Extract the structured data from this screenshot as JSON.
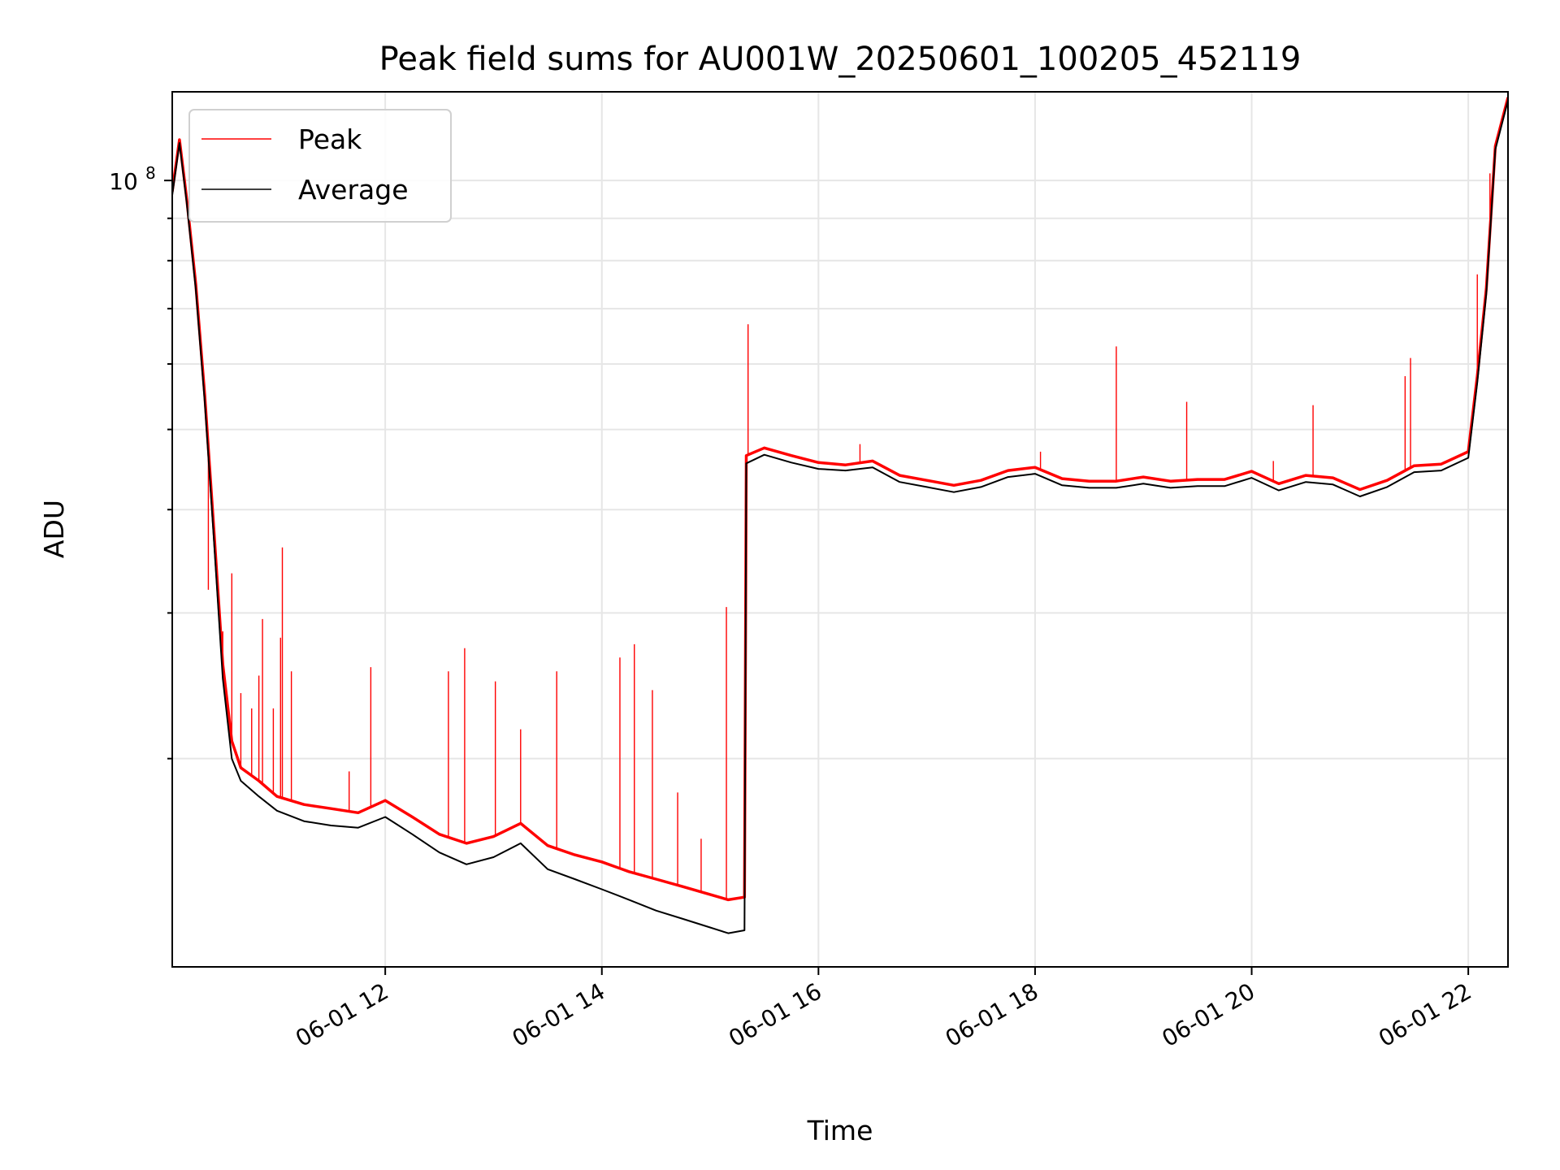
{
  "chart_data": {
    "type": "line",
    "title": "Peak field sums for AU001W_20250601_100205_452119",
    "xlabel": "Time",
    "ylabel": "ADU",
    "y_scale": "log",
    "grid": true,
    "legend_placement": "top-left",
    "ylim": [
      11200000,
      128000000
    ],
    "xlim": [
      "06-01 10:02",
      "06-01 22:22"
    ],
    "x_ticks": [
      "06-01 12",
      "06-01 14",
      "06-01 16",
      "06-01 18",
      "06-01 20",
      "06-01 22"
    ],
    "y_tick_labels": [
      "10",
      "8"
    ],
    "colors": {
      "Peak": "#ff0000",
      "Average": "#000000"
    },
    "series": [
      {
        "name": "Peak",
        "x": [
          "06-01 10:02",
          "06-01 10:06",
          "06-01 10:10",
          "06-01 10:15",
          "06-01 10:20",
          "06-01 10:25",
          "06-01 10:30",
          "06-01 10:35",
          "06-01 10:40",
          "06-01 10:50",
          "06-01 11:00",
          "06-01 11:15",
          "06-01 11:30",
          "06-01 11:45",
          "06-01 12:00",
          "06-01 12:15",
          "06-01 12:30",
          "06-01 12:45",
          "06-01 13:00",
          "06-01 13:15",
          "06-01 13:30",
          "06-01 13:45",
          "06-01 14:00",
          "06-01 14:15",
          "06-01 14:30",
          "06-01 14:45",
          "06-01 15:00",
          "06-01 15:10",
          "06-01 15:19",
          "06-01 15:20",
          "06-01 15:30",
          "06-01 15:45",
          "06-01 16:00",
          "06-01 16:15",
          "06-01 16:30",
          "06-01 16:45",
          "06-01 17:00",
          "06-01 17:15",
          "06-01 17:30",
          "06-01 17:45",
          "06-01 18:00",
          "06-01 18:15",
          "06-01 18:30",
          "06-01 18:45",
          "06-01 19:00",
          "06-01 19:15",
          "06-01 19:30",
          "06-01 19:45",
          "06-01 20:00",
          "06-01 20:15",
          "06-01 20:30",
          "06-01 20:45",
          "06-01 21:00",
          "06-01 21:15",
          "06-01 21:30",
          "06-01 21:45",
          "06-01 22:00",
          "06-01 22:05",
          "06-01 22:10",
          "06-01 22:15",
          "06-01 22:22"
        ],
        "values": [
          97000000,
          112000000,
          95000000,
          75000000,
          55000000,
          38000000,
          26000000,
          21000000,
          19500000,
          18800000,
          18000000,
          17600000,
          17400000,
          17200000,
          17800000,
          17000000,
          16200000,
          15800000,
          16100000,
          16700000,
          15700000,
          15300000,
          15000000,
          14600000,
          14300000,
          14000000,
          13700000,
          13500000,
          13600000,
          46500000,
          47500000,
          46500000,
          45600000,
          45300000,
          45800000,
          44000000,
          43400000,
          42800000,
          43400000,
          44600000,
          45000000,
          43600000,
          43300000,
          43300000,
          43800000,
          43300000,
          43500000,
          43500000,
          44500000,
          43000000,
          44000000,
          43700000,
          42300000,
          43400000,
          45200000,
          45400000,
          47000000,
          58000000,
          74000000,
          110000000,
          126000000
        ]
      },
      {
        "name": "Average",
        "x": [
          "06-01 10:02",
          "06-01 10:06",
          "06-01 10:10",
          "06-01 10:15",
          "06-01 10:20",
          "06-01 10:25",
          "06-01 10:30",
          "06-01 10:35",
          "06-01 10:40",
          "06-01 10:50",
          "06-01 11:00",
          "06-01 11:15",
          "06-01 11:30",
          "06-01 11:45",
          "06-01 12:00",
          "06-01 12:15",
          "06-01 12:30",
          "06-01 12:45",
          "06-01 13:00",
          "06-01 13:15",
          "06-01 13:30",
          "06-01 13:45",
          "06-01 14:00",
          "06-01 14:15",
          "06-01 14:30",
          "06-01 14:45",
          "06-01 15:00",
          "06-01 15:10",
          "06-01 15:19",
          "06-01 15:20",
          "06-01 15:30",
          "06-01 15:45",
          "06-01 16:00",
          "06-01 16:15",
          "06-01 16:30",
          "06-01 16:45",
          "06-01 17:00",
          "06-01 17:15",
          "06-01 17:30",
          "06-01 17:45",
          "06-01 18:00",
          "06-01 18:15",
          "06-01 18:30",
          "06-01 18:45",
          "06-01 19:00",
          "06-01 19:15",
          "06-01 19:30",
          "06-01 19:45",
          "06-01 20:00",
          "06-01 20:15",
          "06-01 20:30",
          "06-01 20:45",
          "06-01 21:00",
          "06-01 21:15",
          "06-01 21:30",
          "06-01 21:45",
          "06-01 22:00",
          "06-01 22:05",
          "06-01 22:10",
          "06-01 22:15",
          "06-01 22:22"
        ],
        "values": [
          96000000,
          111000000,
          94000000,
          74000000,
          54000000,
          37000000,
          25000000,
          20000000,
          18800000,
          18000000,
          17300000,
          16800000,
          16600000,
          16500000,
          17000000,
          16200000,
          15400000,
          14900000,
          15200000,
          15800000,
          14700000,
          14300000,
          13900000,
          13500000,
          13100000,
          12800000,
          12500000,
          12300000,
          12400000,
          45500000,
          46600000,
          45600000,
          44800000,
          44600000,
          45000000,
          43200000,
          42600000,
          42000000,
          42600000,
          43800000,
          44200000,
          42800000,
          42500000,
          42500000,
          43000000,
          42500000,
          42700000,
          42700000,
          43700000,
          42200000,
          43200000,
          42900000,
          41500000,
          42600000,
          44400000,
          44600000,
          46200000,
          57000000,
          73000000,
          109000000,
          125000000
        ]
      }
    ],
    "peak_spikes": [
      {
        "x": "06-01 10:22",
        "value": 32000000
      },
      {
        "x": "06-01 10:30",
        "value": 28500000
      },
      {
        "x": "06-01 10:35",
        "value": 33500000
      },
      {
        "x": "06-01 10:40",
        "value": 24000000
      },
      {
        "x": "06-01 10:46",
        "value": 23000000
      },
      {
        "x": "06-01 10:50",
        "value": 25200000
      },
      {
        "x": "06-01 10:52",
        "value": 29500000
      },
      {
        "x": "06-01 10:58",
        "value": 23000000
      },
      {
        "x": "06-01 11:02",
        "value": 28000000
      },
      {
        "x": "06-01 11:03",
        "value": 36000000
      },
      {
        "x": "06-01 11:08",
        "value": 25500000
      },
      {
        "x": "06-01 11:40",
        "value": 19300000
      },
      {
        "x": "06-01 11:52",
        "value": 25800000
      },
      {
        "x": "06-01 12:35",
        "value": 25500000
      },
      {
        "x": "06-01 12:44",
        "value": 27200000
      },
      {
        "x": "06-01 13:01",
        "value": 24800000
      },
      {
        "x": "06-01 13:15",
        "value": 21700000
      },
      {
        "x": "06-01 13:35",
        "value": 25500000
      },
      {
        "x": "06-01 14:10",
        "value": 26500000
      },
      {
        "x": "06-01 14:18",
        "value": 27500000
      },
      {
        "x": "06-01 14:28",
        "value": 24200000
      },
      {
        "x": "06-01 14:42",
        "value": 18200000
      },
      {
        "x": "06-01 14:55",
        "value": 16000000
      },
      {
        "x": "06-01 15:09",
        "value": 30500000
      },
      {
        "x": "06-01 15:21",
        "value": 67000000
      },
      {
        "x": "06-01 16:23",
        "value": 48000000
      },
      {
        "x": "06-01 18:03",
        "value": 47000000
      },
      {
        "x": "06-01 18:45",
        "value": 63000000
      },
      {
        "x": "06-01 19:24",
        "value": 54000000
      },
      {
        "x": "06-01 20:12",
        "value": 45800000
      },
      {
        "x": "06-01 20:34",
        "value": 53500000
      },
      {
        "x": "06-01 21:25",
        "value": 58000000
      },
      {
        "x": "06-01 21:28",
        "value": 61000000
      },
      {
        "x": "06-01 22:05",
        "value": 77000000
      },
      {
        "x": "06-01 22:12",
        "value": 102000000
      }
    ]
  }
}
